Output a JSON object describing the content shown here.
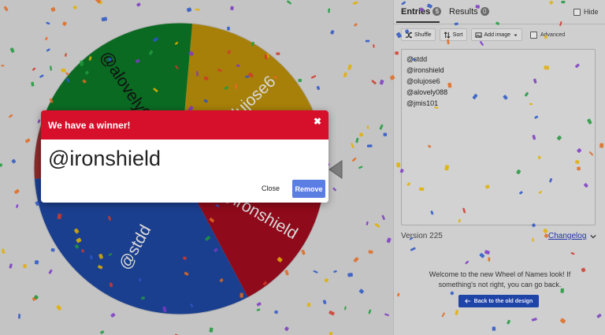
{
  "wheel": {
    "segments": [
      {
        "label": "@olujose6",
        "color": "#a7800a",
        "start": -85,
        "end": -2
      },
      {
        "label": "@ironshield",
        "color": "#8f0a1a",
        "start": -2,
        "end": 62
      },
      {
        "label": "@stdd",
        "color": "#1b3f8f",
        "start": 62,
        "end": 176
      },
      {
        "label": "@jmis101",
        "color": "#8a2a2a",
        "start": 176,
        "end": 198
      },
      {
        "label": "@alovely088",
        "color": "#0a6a22",
        "start": 198,
        "end": 275
      }
    ]
  },
  "panel": {
    "tab_entries": "Entries",
    "entries_count": "5",
    "tab_results": "Results",
    "results_count": "0",
    "hide_label": "Hide",
    "shuffle_label": "Shuffle",
    "sort_label": "Sort",
    "add_image_label": "Add image",
    "advanced_label": "Advanced",
    "entries": [
      "@stdd",
      "@ironshield",
      "@olujose6",
      "@alovely088",
      "@jmis101"
    ],
    "version": "Version 225",
    "changelog": "Changelog",
    "notice": "Welcome to the new Wheel of Names look! If something's not right, you can go back.",
    "old_design_label": "Back to the old design"
  },
  "dialog": {
    "title": "We have a winner!",
    "winner": "@ironshield",
    "close_label": "Close",
    "remove_label": "Remove"
  },
  "colors": {
    "dialog_header": "#d60f2a",
    "remove_button": "#5b7ee3",
    "old_design_button": "#1e44a8"
  }
}
